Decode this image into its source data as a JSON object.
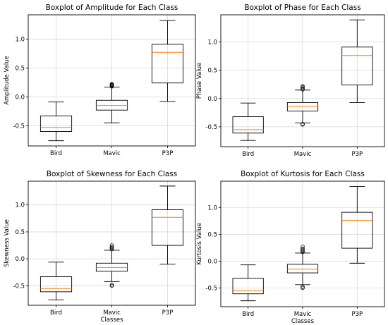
{
  "chart_data": [
    {
      "type": "boxplot",
      "title": "Boxplot of Amplitude for Each Class",
      "xlabel": "",
      "ylabel": "Amplitude Value",
      "categories": [
        "Bird",
        "Mavic",
        "P3P"
      ],
      "ylim": [
        -0.85,
        1.42
      ],
      "yticks": [
        -0.5,
        0.0,
        0.5,
        1.0
      ],
      "ytick_labels": [
        "-0.5",
        "0.0",
        "0.5",
        "1.0"
      ],
      "grid": true,
      "boxes": [
        {
          "whislo": -0.76,
          "q1": -0.6,
          "med": -0.53,
          "q3": -0.33,
          "whishi": -0.09,
          "fliers": []
        },
        {
          "whislo": -0.45,
          "q1": -0.23,
          "med": -0.15,
          "q3": -0.06,
          "whishi": 0.17,
          "fliers": [
            0.18,
            0.19,
            0.2,
            0.21,
            0.22
          ]
        },
        {
          "whislo": -0.08,
          "q1": 0.24,
          "med": 0.77,
          "q3": 0.91,
          "whishi": 1.32,
          "fliers": []
        }
      ]
    },
    {
      "type": "boxplot",
      "title": "Boxplot of Phase for Each Class",
      "xlabel": "",
      "ylabel": "Phase Value",
      "categories": [
        "Bird",
        "Mavic",
        "P3P"
      ],
      "ylim": [
        -0.85,
        1.48
      ],
      "yticks": [
        -0.5,
        0.0,
        0.5,
        1.0
      ],
      "ytick_labels": [
        "-0.5",
        "0.0",
        "0.5",
        "1.0"
      ],
      "grid": true,
      "boxes": [
        {
          "whislo": -0.74,
          "q1": -0.61,
          "med": -0.55,
          "q3": -0.32,
          "whishi": -0.08,
          "fliers": []
        },
        {
          "whislo": -0.43,
          "q1": -0.22,
          "med": -0.14,
          "q3": -0.07,
          "whishi": 0.15,
          "fliers": [
            -0.45,
            -0.46,
            0.16,
            0.18,
            0.2,
            0.22
          ]
        },
        {
          "whislo": -0.07,
          "q1": 0.24,
          "med": 0.76,
          "q3": 0.91,
          "whishi": 1.39,
          "fliers": []
        }
      ]
    },
    {
      "type": "boxplot",
      "title": "Boxplot of Skewness for Each Class",
      "xlabel": "Classes",
      "ylabel": "Skewness Value",
      "categories": [
        "Bird",
        "Mavic",
        "P3P"
      ],
      "ylim": [
        -0.86,
        1.44
      ],
      "yticks": [
        -0.5,
        0.0,
        0.5,
        1.0
      ],
      "ytick_labels": [
        "-0.5",
        "0.0",
        "0.5",
        "1.0"
      ],
      "grid": true,
      "boxes": [
        {
          "whislo": -0.76,
          "q1": -0.61,
          "med": -0.55,
          "q3": -0.33,
          "whishi": -0.06,
          "fliers": []
        },
        {
          "whislo": -0.42,
          "q1": -0.23,
          "med": -0.16,
          "q3": -0.08,
          "whishi": 0.16,
          "fliers": [
            -0.48,
            -0.5,
            0.18,
            0.2,
            0.22,
            0.25
          ]
        },
        {
          "whislo": -0.1,
          "q1": 0.25,
          "med": 0.77,
          "q3": 0.91,
          "whishi": 1.35,
          "fliers": []
        }
      ]
    },
    {
      "type": "boxplot",
      "title": "Boxplot of Kurtosis for Each Class",
      "xlabel": "Classes",
      "ylabel": "Kurtosis Value",
      "categories": [
        "Bird",
        "Mavic",
        "P3P"
      ],
      "ylim": [
        -0.85,
        1.49
      ],
      "yticks": [
        -0.5,
        0.0,
        0.5,
        1.0
      ],
      "ytick_labels": [
        "-0.5",
        "0.0",
        "0.5",
        "1.0"
      ],
      "grid": true,
      "boxes": [
        {
          "whislo": -0.74,
          "q1": -0.61,
          "med": -0.55,
          "q3": -0.32,
          "whishi": -0.07,
          "fliers": []
        },
        {
          "whislo": -0.44,
          "q1": -0.22,
          "med": -0.15,
          "q3": -0.06,
          "whishi": 0.15,
          "fliers": [
            -0.48,
            -0.5,
            0.17,
            0.19,
            0.21,
            0.23,
            0.27
          ]
        },
        {
          "whislo": -0.04,
          "q1": 0.24,
          "med": 0.76,
          "q3": 0.91,
          "whishi": 1.39,
          "fliers": []
        }
      ]
    }
  ],
  "colors": {
    "box": "#000000",
    "median": "#ff7f0e",
    "grid": "#d9d9d9",
    "frame": "#000000"
  }
}
